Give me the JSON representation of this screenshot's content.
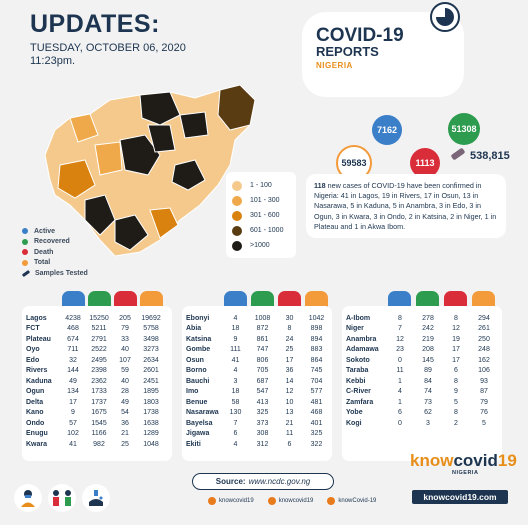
{
  "header": {
    "title": "UPDATES:",
    "date": "TUESDAY, OCTOBER 06, 2020",
    "time": "11:23pm."
  },
  "report": {
    "line1": "COVID-19",
    "line2": "REPORTS",
    "line3": "NIGERIA"
  },
  "stats": {
    "active": "7162",
    "recovered": "51308",
    "total": "59583",
    "deaths": "1113",
    "samples": "538,815"
  },
  "colors": {
    "active": "#3a7fc8",
    "recovered": "#2e9c4f",
    "death": "#d92d3a",
    "total": "#f39a3b",
    "navy": "#1d3550"
  },
  "legend": [
    {
      "label": "1 - 100",
      "color": "#f5c98c"
    },
    {
      "label": "101 - 300",
      "color": "#f0a94a"
    },
    {
      "label": "301 - 600",
      "color": "#d9820f"
    },
    {
      "label": "601 - 1000",
      "color": "#5a3c12"
    },
    {
      "label": ">1000",
      "color": "#1f1b16"
    }
  ],
  "keys": [
    {
      "label": "Active",
      "color": "#3a7fc8"
    },
    {
      "label": "Recovered",
      "color": "#2e9c4f"
    },
    {
      "label": "Death",
      "color": "#d92d3a"
    },
    {
      "label": "Total",
      "color": "#f39a3b"
    },
    {
      "label": "Samples Tested",
      "color": "#1d3550"
    }
  ],
  "summary": {
    "count": "118",
    "text": " new cases of COVID-19 have been confirmed in Nigeria: 41 in Lagos, 19 in Rivers, 17 in Osun, 13 in Nasarawa, 5 in Kaduna, 5 in Anambra, 3 in Edo, 3 in Ogun, 3 in Kwara, 3 in Ondo, 2 in Katsina, 2 in Niger, 1 in Plateau and 1 in Akwa Ibom."
  },
  "tables": [
    {
      "rows": [
        [
          "Lagos",
          "4238",
          "15250",
          "205",
          "19692"
        ],
        [
          "FCT",
          "468",
          "5211",
          "79",
          "5758"
        ],
        [
          "Plateau",
          "674",
          "2791",
          "33",
          "3498"
        ],
        [
          "Oyo",
          "711",
          "2522",
          "40",
          "3273"
        ],
        [
          "Edo",
          "32",
          "2495",
          "107",
          "2634"
        ],
        [
          "Rivers",
          "144",
          "2398",
          "59",
          "2601"
        ],
        [
          "Kaduna",
          "49",
          "2362",
          "40",
          "2451"
        ],
        [
          "Ogun",
          "134",
          "1733",
          "28",
          "1895"
        ],
        [
          "Delta",
          "17",
          "1737",
          "49",
          "1803"
        ],
        [
          "Kano",
          "9",
          "1675",
          "54",
          "1738"
        ],
        [
          "Ondo",
          "57",
          "1545",
          "36",
          "1638"
        ],
        [
          "Enugu",
          "102",
          "1166",
          "21",
          "1289"
        ],
        [
          "Kwara",
          "41",
          "982",
          "25",
          "1048"
        ]
      ]
    },
    {
      "rows": [
        [
          "Ebonyi",
          "4",
          "1008",
          "30",
          "1042"
        ],
        [
          "Abia",
          "18",
          "872",
          "8",
          "898"
        ],
        [
          "Katsina",
          "9",
          "861",
          "24",
          "894"
        ],
        [
          "Gombe",
          "111",
          "747",
          "25",
          "883"
        ],
        [
          "Osun",
          "41",
          "806",
          "17",
          "864"
        ],
        [
          "Borno",
          "4",
          "705",
          "36",
          "745"
        ],
        [
          "Bauchi",
          "3",
          "687",
          "14",
          "704"
        ],
        [
          "Imo",
          "18",
          "547",
          "12",
          "577"
        ],
        [
          "Benue",
          "58",
          "413",
          "10",
          "481"
        ],
        [
          "Nasarawa",
          "130",
          "325",
          "13",
          "468"
        ],
        [
          "Bayelsa",
          "7",
          "373",
          "21",
          "401"
        ],
        [
          "Jigawa",
          "6",
          "308",
          "11",
          "325"
        ],
        [
          "Ekiti",
          "4",
          "312",
          "6",
          "322"
        ]
      ]
    },
    {
      "rows": [
        [
          "A-Ibom",
          "8",
          "278",
          "8",
          "294"
        ],
        [
          "Niger",
          "7",
          "242",
          "12",
          "261"
        ],
        [
          "Anambra",
          "12",
          "219",
          "19",
          "250"
        ],
        [
          "Adamawa",
          "23",
          "208",
          "17",
          "248"
        ],
        [
          "Sokoto",
          "0",
          "145",
          "17",
          "162"
        ],
        [
          "Taraba",
          "11",
          "89",
          "6",
          "106"
        ],
        [
          "Kebbi",
          "1",
          "84",
          "8",
          "93"
        ],
        [
          "C-River",
          "4",
          "74",
          "9",
          "87"
        ],
        [
          "Zamfara",
          "1",
          "73",
          "5",
          "79"
        ],
        [
          "Yobe",
          "6",
          "62",
          "8",
          "76"
        ],
        [
          "Kogi",
          "0",
          "3",
          "2",
          "5"
        ]
      ]
    }
  ],
  "source": {
    "label": "Source:",
    "url": "www.ncdc.gov.ng"
  },
  "socials": [
    "knowcovid19",
    "knowcovid19",
    "knowCovid-19"
  ],
  "brand": {
    "know": "know",
    "covid": "covid",
    "num": "19",
    "country": "NIGERIA",
    "url": "knowcovid19.com"
  }
}
